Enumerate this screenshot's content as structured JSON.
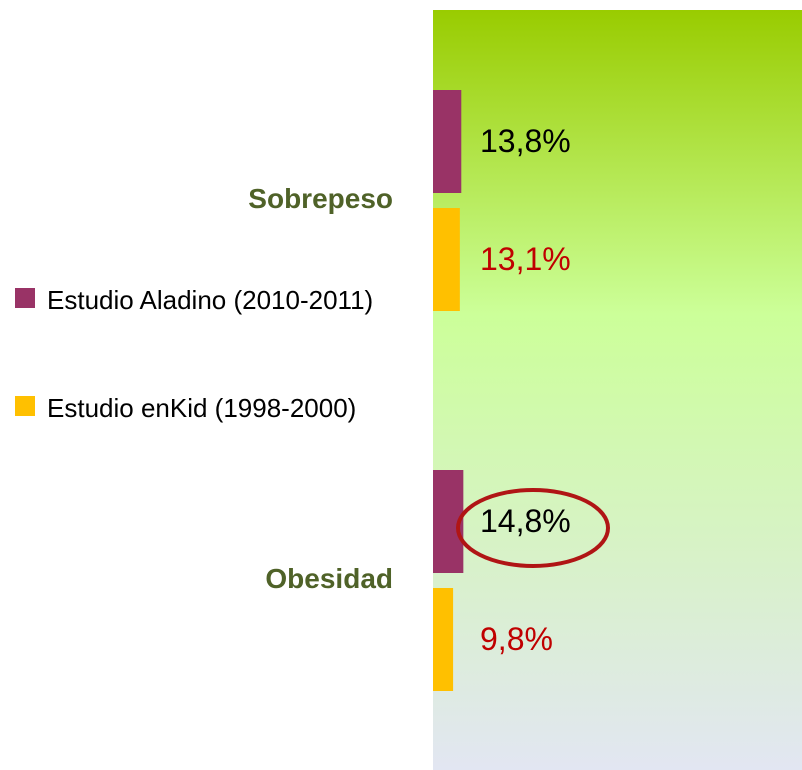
{
  "chart_data": {
    "type": "barh",
    "categories": [
      "Sobrepeso",
      "Obesidad"
    ],
    "series": [
      {
        "name": "Estudio Aladino (2010-2011)",
        "color": "#993366",
        "label_color": "#000000",
        "values": [
          13.8,
          14.8
        ],
        "value_labels": [
          "13,8%",
          "14,8%"
        ]
      },
      {
        "name": "Estudio enKid (1998-2000)",
        "color": "#ffc000",
        "label_color": "#c00000",
        "values": [
          13.1,
          9.8
        ],
        "value_labels": [
          "13,1%",
          "9,8%"
        ]
      }
    ],
    "xlim": [
      0,
      180
    ]
  }
}
